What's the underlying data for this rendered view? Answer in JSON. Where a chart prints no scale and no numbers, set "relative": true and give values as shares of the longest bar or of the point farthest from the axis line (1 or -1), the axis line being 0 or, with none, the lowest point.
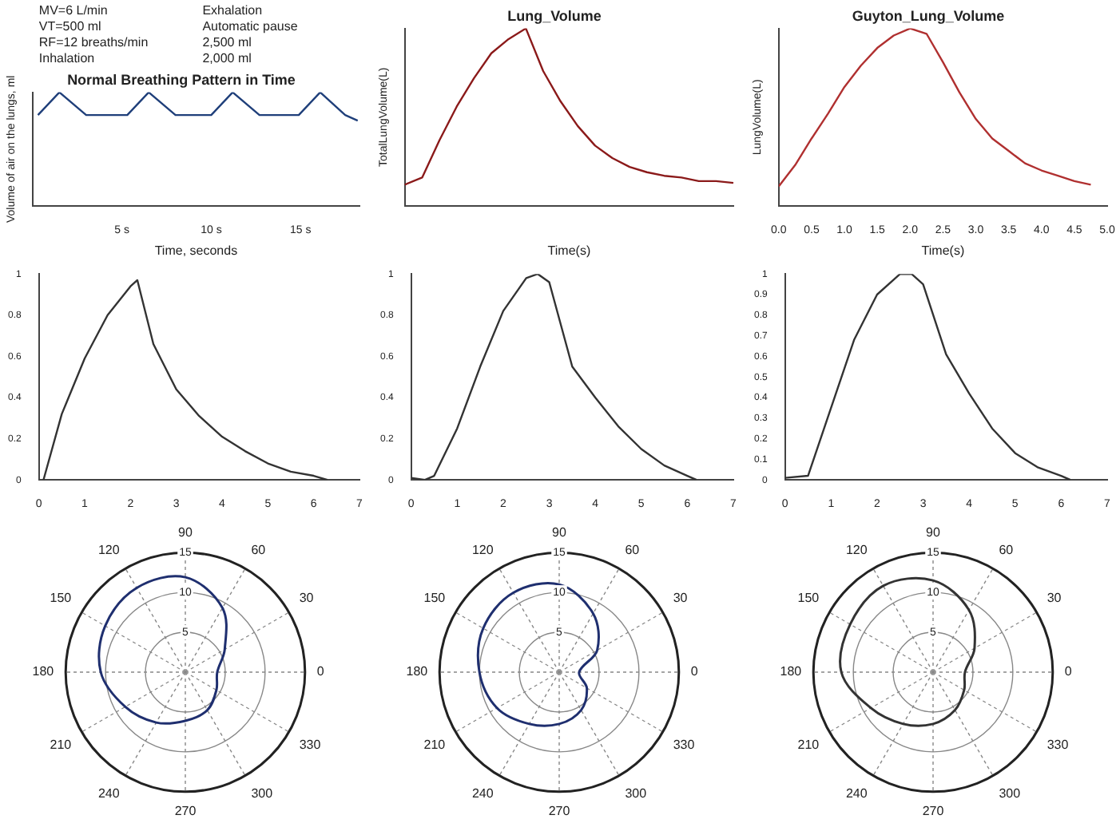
{
  "chart_data": [
    {
      "type": "line",
      "title": "Normal Breathing Pattern in Time",
      "ylabel": "Volume of air on the lungs, ml",
      "xlabel": "Time, seconds",
      "relative": true,
      "marker": "none",
      "line_style": "solid",
      "grid": false,
      "legend": false,
      "annotations": [
        "MV=6 L/min",
        "VT=500 ml",
        "RF=12 breaths/min",
        "Inhalation",
        "Exhalation",
        "Automatic pause",
        "2,500 ml",
        "2,000 ml"
      ],
      "x": [
        0.3,
        1.5,
        3.0,
        5.3,
        6.5,
        8.0,
        10.0,
        11.2,
        12.7,
        14.9,
        16.1,
        17.5,
        18.2
      ],
      "xlim": [
        0,
        18.3
      ],
      "xticks": [
        {
          "value": 5,
          "label": "5 s"
        },
        {
          "value": 10,
          "label": "10 s"
        },
        {
          "value": 15,
          "label": "15 s"
        }
      ],
      "series": [
        {
          "color": "#1f3f7a",
          "values": [
            0.8,
            1,
            0.8,
            0.8,
            1,
            0.8,
            0.8,
            1,
            0.8,
            0.8,
            1,
            0.8,
            0.75
          ]
        }
      ]
    },
    {
      "type": "line",
      "title": "Lung_Volume",
      "ylabel": "TotalLungVolume(L)",
      "xlabel": "Time(s)",
      "relative": true,
      "marker": "none",
      "line_style": "solid",
      "grid": false,
      "legend": false,
      "categories": [
        null,
        null,
        null,
        null,
        null,
        null,
        null,
        null,
        null,
        null,
        null,
        null,
        null,
        null,
        null,
        null,
        null,
        null,
        null,
        null
      ],
      "series": [
        {
          "color": "#8b1a1a",
          "values": [
            0.12,
            0.16,
            0.37,
            0.56,
            0.72,
            0.86,
            0.94,
            1,
            0.76,
            0.59,
            0.45,
            0.34,
            0.27,
            0.22,
            0.19,
            0.17,
            0.16,
            0.14,
            0.14,
            0.13
          ]
        }
      ]
    },
    {
      "type": "line",
      "title": "Guyton_Lung_Volume",
      "ylabel": "LungVolume(L)",
      "xlabel": "Time(s)",
      "relative": true,
      "marker": "none",
      "line_style": "solid",
      "grid": false,
      "legend": false,
      "x": [
        0,
        0.25,
        0.5,
        0.75,
        1,
        1.25,
        1.5,
        1.75,
        2,
        2.25,
        2.5,
        2.75,
        3,
        3.25,
        3.5,
        3.75,
        4,
        4.25,
        4.5,
        4.75
      ],
      "xlim": [
        0,
        5
      ],
      "xticks": [
        {
          "value": 0,
          "label": "0.0"
        },
        {
          "value": 0.5,
          "label": "0.5"
        },
        {
          "value": 1,
          "label": "1.0"
        },
        {
          "value": 1.5,
          "label": "1.5"
        },
        {
          "value": 2,
          "label": "2.0"
        },
        {
          "value": 2.5,
          "label": "2.5"
        },
        {
          "value": 3,
          "label": "3.0"
        },
        {
          "value": 3.5,
          "label": "3.5"
        },
        {
          "value": 4,
          "label": "4.0"
        },
        {
          "value": 4.5,
          "label": "4.5"
        },
        {
          "value": 5,
          "label": "5.0"
        }
      ],
      "series": [
        {
          "color": "#b03030",
          "values": [
            0.11,
            0.23,
            0.38,
            0.52,
            0.67,
            0.79,
            0.89,
            0.96,
            1,
            0.97,
            0.81,
            0.64,
            0.49,
            0.38,
            0.31,
            0.24,
            0.2,
            0.17,
            0.14,
            0.12
          ]
        }
      ]
    },
    {
      "type": "line",
      "marker": "none",
      "line_style": "solid",
      "grid": false,
      "legend": false,
      "x": [
        0.1,
        0.5,
        1,
        1.5,
        2,
        2.15,
        2.5,
        3,
        3.5,
        4,
        4.5,
        5,
        5.5,
        6,
        6.3
      ],
      "xlim": [
        0,
        7
      ],
      "xticks": [
        0,
        1,
        2,
        3,
        4,
        5,
        6,
        7
      ],
      "ylim": [
        0,
        1
      ],
      "yticks": [
        0,
        0.2,
        0.4,
        0.6,
        0.8,
        1
      ],
      "series": [
        {
          "color": "#333333",
          "values": [
            0,
            0.32,
            0.59,
            0.8,
            0.94,
            0.97,
            0.66,
            0.44,
            0.31,
            0.21,
            0.14,
            0.08,
            0.04,
            0.02,
            0
          ]
        }
      ]
    },
    {
      "type": "line",
      "marker": "none",
      "line_style": "solid",
      "grid": false,
      "legend": false,
      "x": [
        0,
        0.3,
        0.5,
        1,
        1.5,
        2,
        2.5,
        2.75,
        3,
        3.5,
        4,
        4.5,
        5,
        5.5,
        6,
        6.2
      ],
      "xlim": [
        0,
        7
      ],
      "xticks": [
        0,
        1,
        2,
        3,
        4,
        5,
        6,
        7
      ],
      "ylim": [
        0,
        1
      ],
      "yticks": [
        0,
        0.2,
        0.4,
        0.6,
        0.8,
        1
      ],
      "series": [
        {
          "color": "#333333",
          "values": [
            0.01,
            0,
            0.02,
            0.25,
            0.55,
            0.82,
            0.98,
            1,
            0.96,
            0.55,
            0.4,
            0.26,
            0.15,
            0.07,
            0.02,
            0
          ]
        }
      ]
    },
    {
      "type": "line",
      "marker": "none",
      "line_style": "solid",
      "grid": false,
      "legend": false,
      "x": [
        0,
        0.5,
        1,
        1.5,
        2,
        2.5,
        2.75,
        3,
        3.5,
        4,
        4.5,
        5,
        5.5,
        6,
        6.2
      ],
      "xlim": [
        0,
        7
      ],
      "xticks": [
        0,
        1,
        2,
        3,
        4,
        5,
        6,
        7
      ],
      "ylim": [
        0,
        1
      ],
      "yticks": [
        0,
        0.1,
        0.2,
        0.3,
        0.4,
        0.5,
        0.6,
        0.7,
        0.8,
        0.9,
        1
      ],
      "series": [
        {
          "color": "#333333",
          "values": [
            0.01,
            0.02,
            0.35,
            0.68,
            0.9,
            1,
            1,
            0.95,
            0.61,
            0.42,
            0.25,
            0.13,
            0.06,
            0.02,
            0
          ]
        }
      ]
    },
    {
      "type": "radar",
      "grid": true,
      "legend": false,
      "marker": "none",
      "line_style": "solid",
      "categories": [
        "90",
        "60",
        "30",
        "0",
        "330",
        "300",
        "270",
        "240",
        "210",
        "180",
        "150",
        "120"
      ],
      "ylim": [
        0,
        15
      ],
      "yticks": [
        5,
        10,
        15
      ],
      "series": [
        {
          "color": "#1f2f6f",
          "values": [
            11.9,
            9.3,
            5.7,
            4,
            4.5,
            5.5,
            6.1,
            7.3,
            8.7,
            10.6,
            11.6,
            12.2
          ]
        }
      ]
    },
    {
      "type": "radar",
      "grid": true,
      "legend": false,
      "marker": "none",
      "line_style": "solid",
      "categories": [
        "90",
        "60",
        "30",
        "0",
        "330",
        "300",
        "270",
        "240",
        "210",
        "180",
        "150",
        "120"
      ],
      "ylim": [
        0,
        15
      ],
      "yticks": [
        5,
        10,
        15
      ],
      "series": [
        {
          "color": "#1f2f6f",
          "values": [
            11,
            8.5,
            5.5,
            2.5,
            4,
            5.5,
            6.5,
            7.5,
            9,
            10,
            11,
            11.5
          ]
        }
      ]
    },
    {
      "type": "radar",
      "grid": true,
      "legend": false,
      "marker": "none",
      "line_style": "solid",
      "categories": [
        "90",
        "60",
        "30",
        "0",
        "330",
        "300",
        "270",
        "240",
        "210",
        "180",
        "150",
        "120"
      ],
      "ylim": [
        0,
        15
      ],
      "yticks": [
        5,
        10,
        15
      ],
      "series": [
        {
          "color": "#333333",
          "values": [
            11.5,
            9,
            6,
            4,
            4.5,
            5.5,
            6.5,
            7.5,
            9,
            11.5,
            12,
            12.5
          ]
        }
      ]
    }
  ]
}
